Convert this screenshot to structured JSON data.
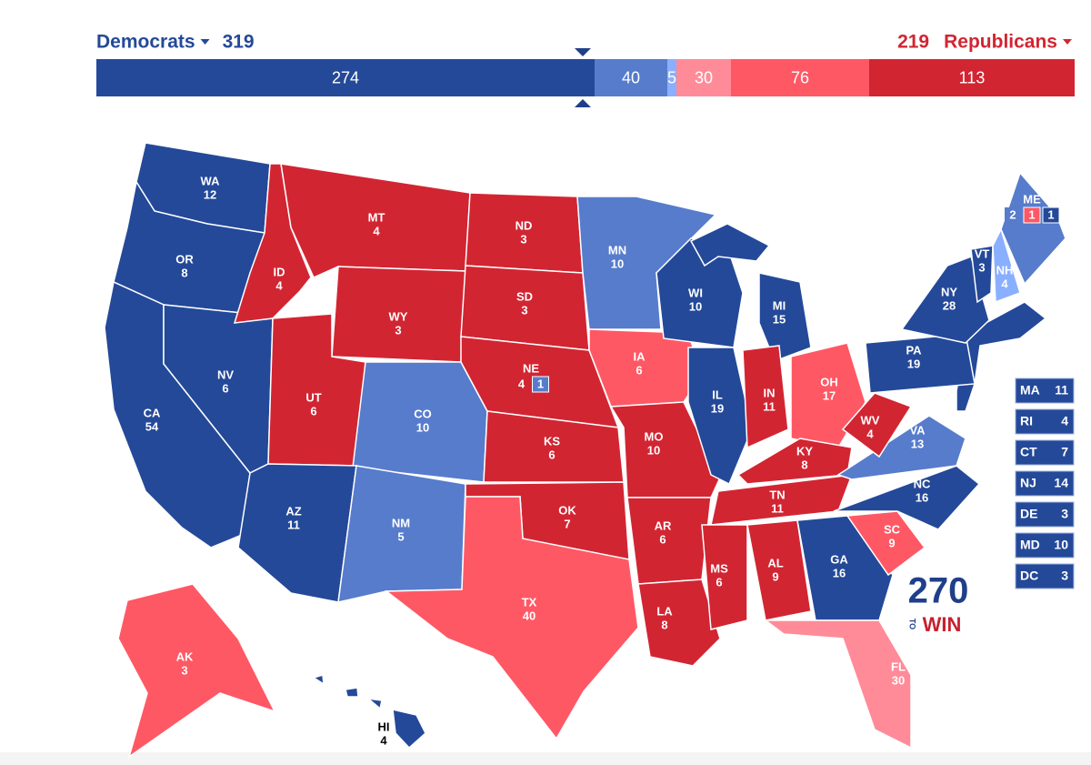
{
  "header": {
    "dem_label": "Democrats",
    "dem_total": 319,
    "dem_color": "#244999",
    "rep_total": 219,
    "rep_label": "Republicans",
    "rep_color": "#d22532"
  },
  "bar": {
    "segments": [
      {
        "value": 274,
        "color": "#244999"
      },
      {
        "value": 40,
        "color": "#577ccc"
      },
      {
        "value": 5,
        "color": "#8aafff"
      },
      {
        "value": 30,
        "color": "#ff8b98"
      },
      {
        "value": 76,
        "color": "#ff5865"
      },
      {
        "value": 113,
        "color": "#d22532"
      }
    ]
  },
  "states": [
    {
      "abbr": "WA",
      "votes": 12,
      "color": "#244999"
    },
    {
      "abbr": "OR",
      "votes": 8,
      "color": "#244999"
    },
    {
      "abbr": "CA",
      "votes": 54,
      "color": "#244999"
    },
    {
      "abbr": "NV",
      "votes": 6,
      "color": "#244999"
    },
    {
      "abbr": "ID",
      "votes": 4,
      "color": "#d22532"
    },
    {
      "abbr": "MT",
      "votes": 4,
      "color": "#d22532"
    },
    {
      "abbr": "WY",
      "votes": 3,
      "color": "#d22532"
    },
    {
      "abbr": "UT",
      "votes": 6,
      "color": "#d22532"
    },
    {
      "abbr": "CO",
      "votes": 10,
      "color": "#577ccc"
    },
    {
      "abbr": "AZ",
      "votes": 11,
      "color": "#244999"
    },
    {
      "abbr": "NM",
      "votes": 5,
      "color": "#577ccc"
    },
    {
      "abbr": "ND",
      "votes": 3,
      "color": "#d22532"
    },
    {
      "abbr": "SD",
      "votes": 3,
      "color": "#d22532"
    },
    {
      "abbr": "NE",
      "votes": 4,
      "color": "#d22532",
      "districts": [
        {
          "votes": 1,
          "color": "#577ccc"
        }
      ]
    },
    {
      "abbr": "KS",
      "votes": 6,
      "color": "#d22532"
    },
    {
      "abbr": "OK",
      "votes": 7,
      "color": "#d22532"
    },
    {
      "abbr": "TX",
      "votes": 40,
      "color": "#ff5865"
    },
    {
      "abbr": "MN",
      "votes": 10,
      "color": "#577ccc"
    },
    {
      "abbr": "IA",
      "votes": 6,
      "color": "#ff5865"
    },
    {
      "abbr": "MO",
      "votes": 10,
      "color": "#d22532"
    },
    {
      "abbr": "AR",
      "votes": 6,
      "color": "#d22532"
    },
    {
      "abbr": "LA",
      "votes": 8,
      "color": "#d22532"
    },
    {
      "abbr": "WI",
      "votes": 10,
      "color": "#244999"
    },
    {
      "abbr": "IL",
      "votes": 19,
      "color": "#244999"
    },
    {
      "abbr": "MI",
      "votes": 15,
      "color": "#244999"
    },
    {
      "abbr": "IN",
      "votes": 11,
      "color": "#d22532"
    },
    {
      "abbr": "OH",
      "votes": 17,
      "color": "#ff5865"
    },
    {
      "abbr": "KY",
      "votes": 8,
      "color": "#d22532"
    },
    {
      "abbr": "TN",
      "votes": 11,
      "color": "#d22532"
    },
    {
      "abbr": "MS",
      "votes": 6,
      "color": "#d22532"
    },
    {
      "abbr": "AL",
      "votes": 9,
      "color": "#d22532"
    },
    {
      "abbr": "GA",
      "votes": 16,
      "color": "#244999"
    },
    {
      "abbr": "FL",
      "votes": 30,
      "color": "#ff8b98"
    },
    {
      "abbr": "SC",
      "votes": 9,
      "color": "#ff5865"
    },
    {
      "abbr": "NC",
      "votes": 16,
      "color": "#244999"
    },
    {
      "abbr": "VA",
      "votes": 13,
      "color": "#577ccc"
    },
    {
      "abbr": "WV",
      "votes": 4,
      "color": "#d22532"
    },
    {
      "abbr": "PA",
      "votes": 19,
      "color": "#244999"
    },
    {
      "abbr": "NY",
      "votes": 28,
      "color": "#244999"
    },
    {
      "abbr": "VT",
      "votes": 3,
      "color": "#244999"
    },
    {
      "abbr": "NH",
      "votes": 4,
      "color": "#8aafff"
    },
    {
      "abbr": "ME",
      "votes": 2,
      "color": "#577ccc",
      "districts": [
        {
          "votes": 1,
          "color": "#ff5865"
        },
        {
          "votes": 1,
          "color": "#244999"
        }
      ]
    },
    {
      "abbr": "AK",
      "votes": 3,
      "color": "#ff5865"
    },
    {
      "abbr": "HI",
      "votes": 4,
      "color": "#244999"
    }
  ],
  "small_states": [
    {
      "abbr": "MA",
      "votes": 11,
      "color": "#244999"
    },
    {
      "abbr": "RI",
      "votes": 4,
      "color": "#244999"
    },
    {
      "abbr": "CT",
      "votes": 7,
      "color": "#244999"
    },
    {
      "abbr": "NJ",
      "votes": 14,
      "color": "#244999"
    },
    {
      "abbr": "DE",
      "votes": 3,
      "color": "#244999"
    },
    {
      "abbr": "MD",
      "votes": 10,
      "color": "#244999"
    },
    {
      "abbr": "DC",
      "votes": 3,
      "color": "#244999"
    }
  ],
  "logo": {
    "number": "270",
    "to": "TO",
    "win": "WIN"
  }
}
